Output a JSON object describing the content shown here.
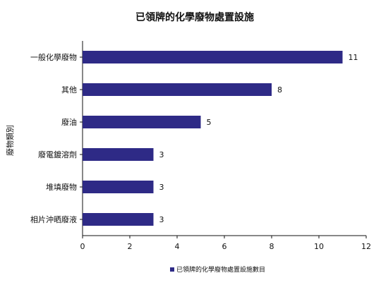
{
  "colors": {
    "bar": "#2E2A86",
    "axis": "#111111",
    "text": "#111111",
    "background": "#FFFFFF"
  },
  "chart_data": {
    "type": "bar",
    "orientation": "horizontal",
    "title": "已領牌的化學廢物處置設施",
    "ylabel": "廢物類別",
    "xlabel": "",
    "categories": [
      "一般化學廢物",
      "其他",
      "廢油",
      "廢電鍍溶劑",
      "堆填廢物",
      "相片沖晒廢液"
    ],
    "series": [
      {
        "name": "已領牌的化學廢物處置設施數目",
        "values": [
          11,
          8,
          5,
          3,
          3,
          3
        ]
      }
    ],
    "xlim": [
      0,
      12
    ],
    "xticks": [
      0,
      2,
      4,
      6,
      8,
      10,
      12
    ],
    "grid": false,
    "legend": "bottom-right",
    "data_labels": true
  }
}
